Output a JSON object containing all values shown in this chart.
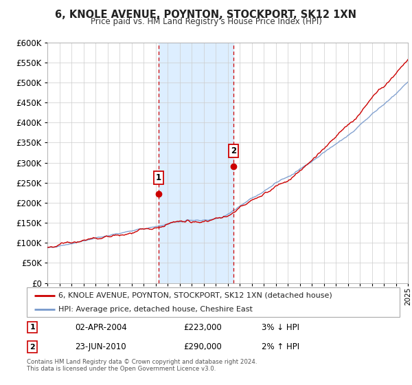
{
  "title1": "6, KNOLE AVENUE, POYNTON, STOCKPORT, SK12 1XN",
  "title2": "Price paid vs. HM Land Registry's House Price Index (HPI)",
  "legend_line1": "6, KNOLE AVENUE, POYNTON, STOCKPORT, SK12 1XN (detached house)",
  "legend_line2": "HPI: Average price, detached house, Cheshire East",
  "sale1_label": "1",
  "sale1_date": "02-APR-2004",
  "sale1_price": "£223,000",
  "sale1_hpi": "3% ↓ HPI",
  "sale2_label": "2",
  "sale2_date": "23-JUN-2010",
  "sale2_price": "£290,000",
  "sale2_hpi": "2% ↑ HPI",
  "footnote1": "Contains HM Land Registry data © Crown copyright and database right 2024.",
  "footnote2": "This data is licensed under the Open Government Licence v3.0.",
  "price_line_color": "#cc0000",
  "hpi_line_color": "#7799cc",
  "shade_color": "#ddeeff",
  "sale_marker_color": "#cc0000",
  "vline_color": "#cc0000",
  "grid_color": "#cccccc",
  "background_color": "#ffffff",
  "sale1_x": 2004.25,
  "sale1_y": 223000,
  "sale2_x": 2010.48,
  "sale2_y": 290000,
  "ylim": [
    0,
    600000
  ],
  "xlim_start": 1995,
  "xlim_end": 2025
}
